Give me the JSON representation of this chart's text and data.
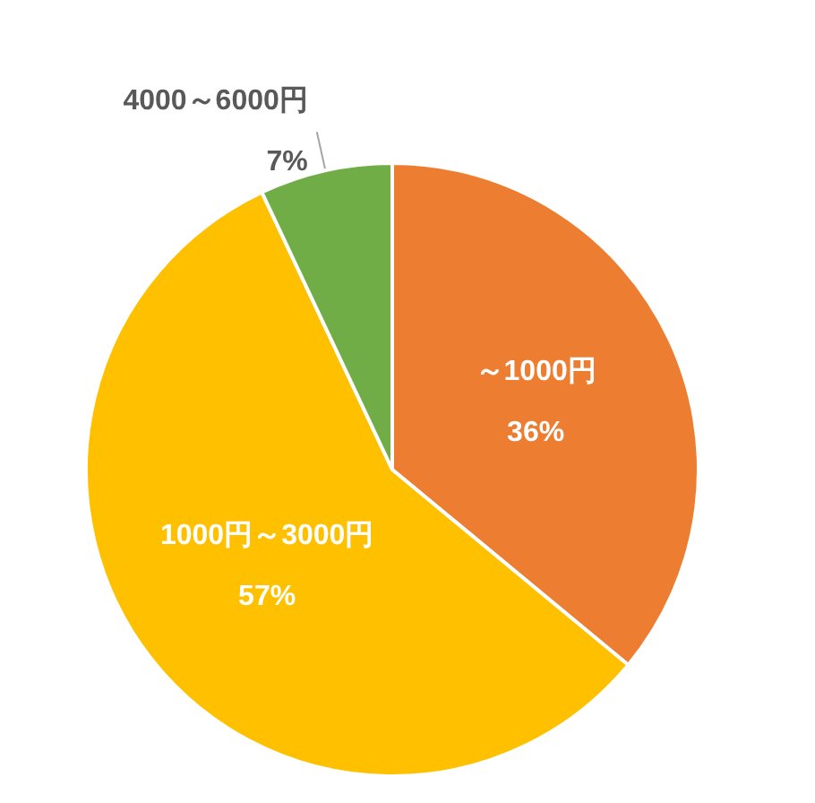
{
  "chart_data": {
    "type": "pie",
    "categories": [
      "～1000円",
      "1000円～3000円",
      "4000～6000円"
    ],
    "values": [
      36,
      57,
      7
    ],
    "colors": [
      "#ed7d31",
      "#ffc000",
      "#70ad47"
    ],
    "value_labels": [
      "36%",
      "57%",
      "7%"
    ]
  }
}
